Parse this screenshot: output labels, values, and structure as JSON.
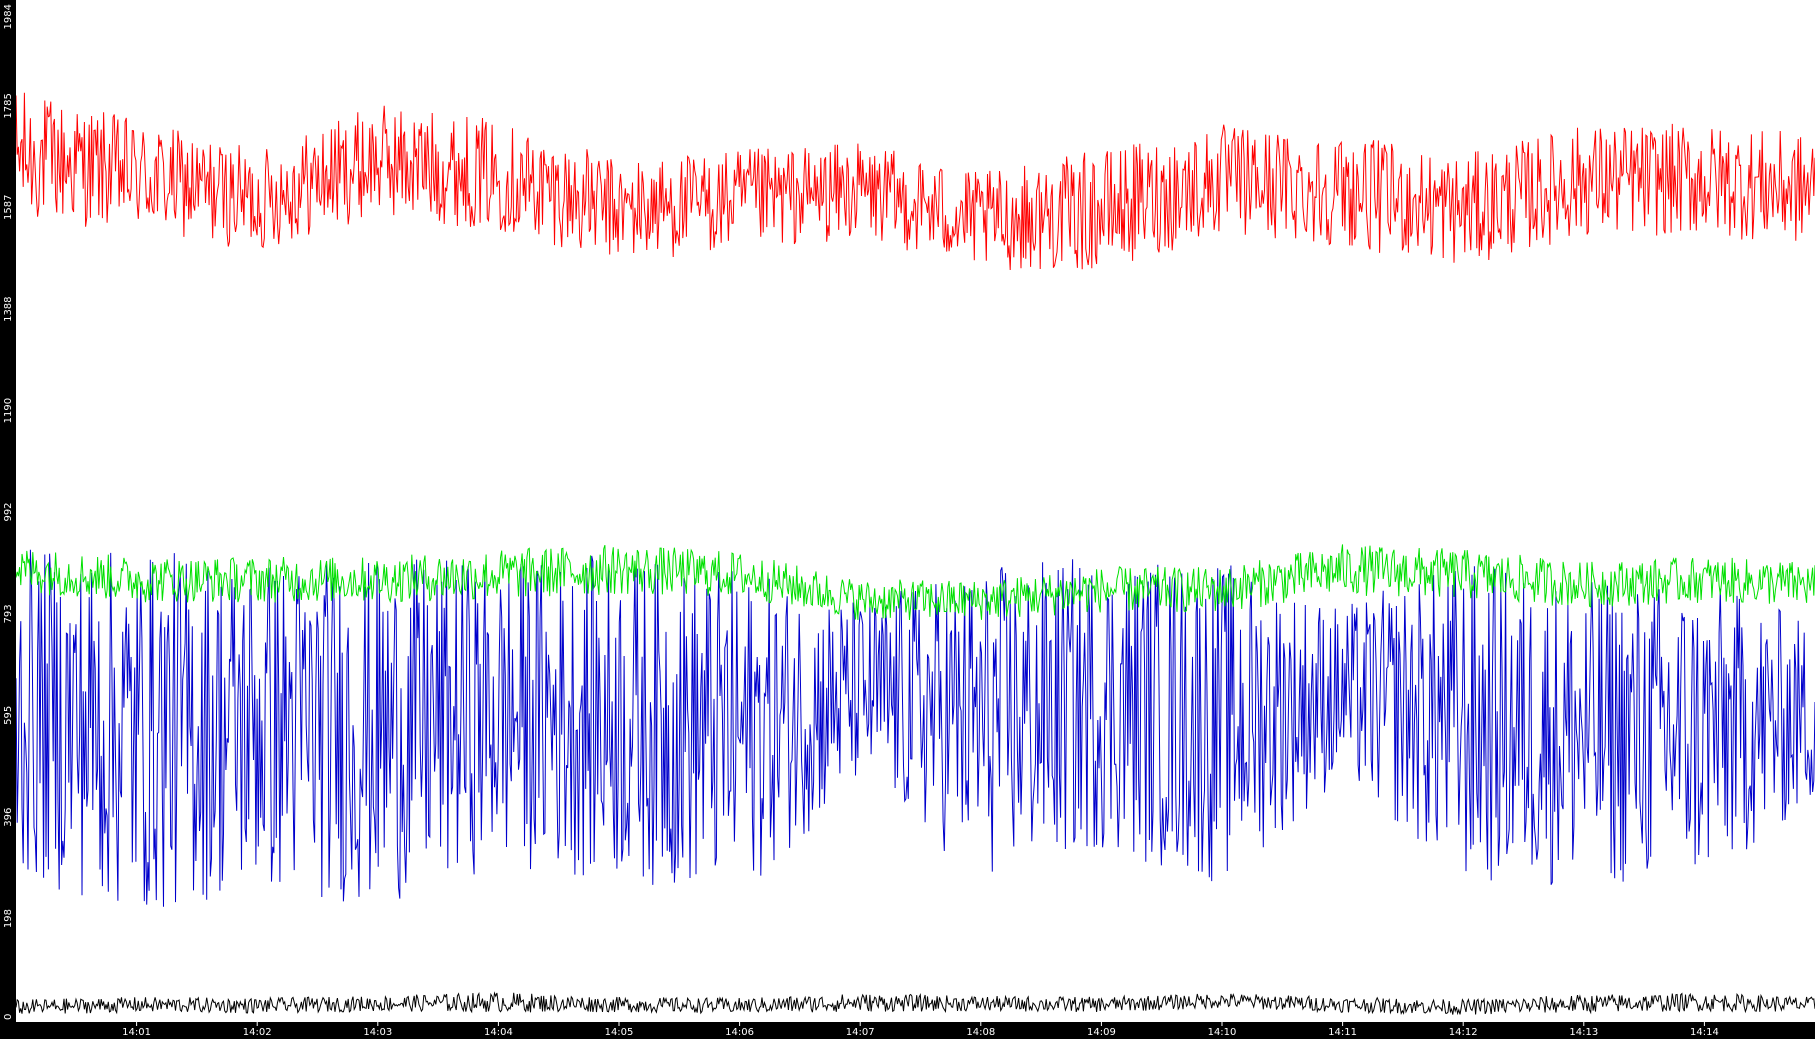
{
  "chart_data": {
    "type": "line",
    "title": "",
    "xlabel": "",
    "ylabel": "",
    "xlim": [
      "14:00:00",
      "14:14:55"
    ],
    "ylim": [
      0,
      1984
    ],
    "grid": false,
    "legend": "none",
    "colors": {
      "background": "#ffffff",
      "axis_frame": "#000000",
      "tick_text": "#ffffff"
    },
    "y_ticks": [
      "0",
      "198",
      "396",
      "595",
      "793",
      "992",
      "1190",
      "1388",
      "1587",
      "1785",
      "1984"
    ],
    "x_ticks": [
      "14:01",
      "14:02",
      "14:03",
      "14:04",
      "14:05",
      "14:06",
      "14:07",
      "14:08",
      "14:09",
      "14:10",
      "14:11",
      "14:12",
      "14:13",
      "14:14"
    ],
    "x_tick_values": [
      "14:01",
      "14:02",
      "14:03",
      "14:04",
      "14:05",
      "14:06",
      "14:07",
      "14:08",
      "14:09",
      "14:10",
      "14:11",
      "14:12",
      "14:13",
      "14:14"
    ],
    "series": [
      {
        "color": "#ff0000",
        "x": [
          "14:00",
          "14:01",
          "14:02",
          "14:03",
          "14:04",
          "14:05",
          "14:06",
          "14:07",
          "14:08",
          "14:09",
          "14:10",
          "14:11",
          "14:12",
          "14:13",
          "14:14",
          "14:14:55"
        ],
        "values": [
          1690,
          1650,
          1600,
          1680,
          1650,
          1580,
          1600,
          1620,
          1560,
          1580,
          1640,
          1620,
          1580,
          1640,
          1640,
          1620
        ],
        "spread": [
          130,
          110,
          100,
          110,
          110,
          100,
          100,
          95,
          95,
          120,
          110,
          110,
          110,
          110,
          110,
          110
        ]
      },
      {
        "color": "#00e000",
        "x": [
          "14:00",
          "14:01",
          "14:02",
          "14:03",
          "14:04",
          "14:05",
          "14:06",
          "14:07",
          "14:08",
          "14:09",
          "14:10",
          "14:11",
          "14:12",
          "14:13",
          "14:14",
          "14:14:55"
        ],
        "values": [
          880,
          860,
          860,
          860,
          870,
          880,
          870,
          820,
          820,
          840,
          840,
          880,
          870,
          850,
          860,
          850
        ],
        "spread": [
          45,
          45,
          45,
          45,
          50,
          50,
          45,
          40,
          40,
          45,
          45,
          50,
          50,
          45,
          45,
          45
        ]
      },
      {
        "color": "#0000cc",
        "x": [
          "14:00",
          "14:01",
          "14:02",
          "14:03",
          "14:04",
          "14:05",
          "14:06",
          "14:07",
          "14:08",
          "14:09",
          "14:10",
          "14:11",
          "14:12",
          "14:13",
          "14:14",
          "14:14:55"
        ],
        "values": [
          600,
          560,
          580,
          560,
          600,
          590,
          560,
          640,
          580,
          620,
          580,
          640,
          580,
          560,
          560,
          600
        ],
        "spread": [
          320,
          360,
          330,
          340,
          300,
          320,
          320,
          180,
          310,
          290,
          320,
          170,
          320,
          300,
          300,
          180
        ]
      },
      {
        "color": "#000000",
        "x": [
          "14:00",
          "14:01",
          "14:02",
          "14:03",
          "14:04",
          "14:05",
          "14:06",
          "14:07",
          "14:08",
          "14:09",
          "14:10",
          "14:11",
          "14:12",
          "14:13",
          "14:14",
          "14:14:55"
        ],
        "values": [
          25,
          30,
          28,
          32,
          35,
          30,
          28,
          34,
          32,
          30,
          38,
          30,
          25,
          32,
          35,
          30
        ],
        "spread": [
          15,
          15,
          15,
          15,
          20,
          15,
          15,
          18,
          15,
          15,
          15,
          15,
          15,
          18,
          18,
          15
        ]
      }
    ]
  }
}
